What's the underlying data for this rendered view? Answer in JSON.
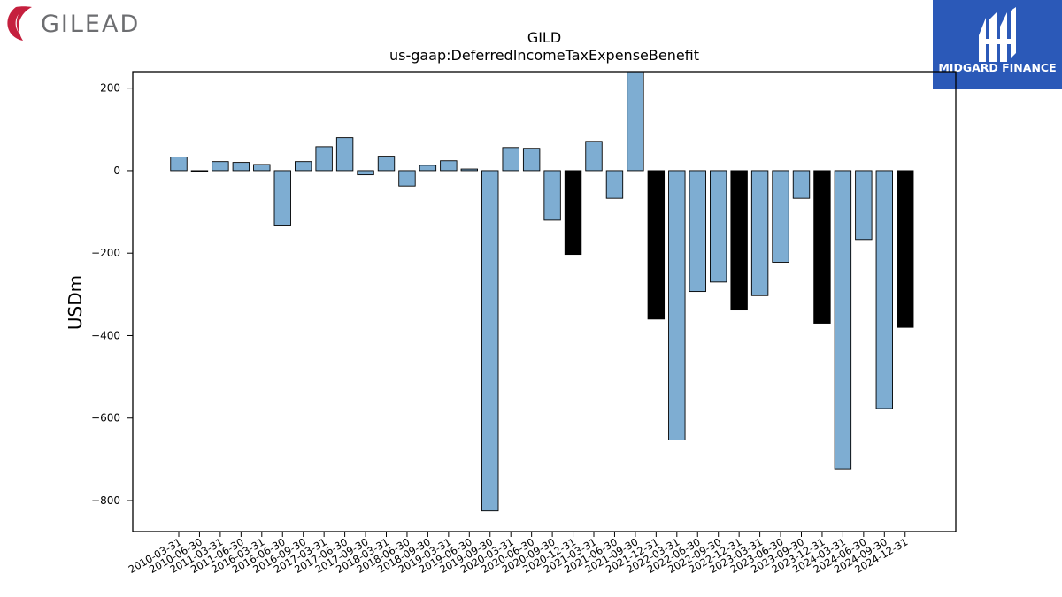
{
  "branding": {
    "company_logo_text": "GILEAD",
    "company_logo_color": "#6d6e71",
    "company_logo_mark_color": "#c5203e",
    "publisher_logo_text": "MIDGARD FINANCE",
    "publisher_bg_color": "#2b59b8"
  },
  "chart_data": {
    "type": "bar",
    "title": "GILD",
    "subtitle": "us-gaap:DeferredIncomeTaxExpenseBenefit",
    "xlabel": "",
    "ylabel": "USDm",
    "ylim": [
      -875,
      240
    ],
    "yticks": [
      200,
      0,
      -200,
      -400,
      -600,
      -800
    ],
    "ytick_labels": [
      "200",
      "0",
      "−200",
      "−400",
      "−600",
      "−800"
    ],
    "grid": false,
    "colors": {
      "quarterly": "#7eadd2",
      "year_end": "#000000",
      "edge": "#000000"
    },
    "categories": [
      "2010-03-31",
      "2010-06-30",
      "2011-03-31",
      "2011-06-30",
      "2016-03-31",
      "2016-06-30",
      "2016-09-30",
      "2017-03-31",
      "2017-06-30",
      "2017-09-30",
      "2018-03-31",
      "2018-06-30",
      "2018-09-30",
      "2019-03-31",
      "2019-06-30",
      "2019-09-30",
      "2020-03-31",
      "2020-06-30",
      "2020-09-30",
      "2020-12-31",
      "2021-03-31",
      "2021-06-30",
      "2021-09-30",
      "2021-12-31",
      "2022-03-31",
      "2022-06-30",
      "2022-09-30",
      "2022-12-31",
      "2023-03-31",
      "2023-06-30",
      "2023-09-30",
      "2023-12-31",
      "2024-03-31",
      "2024-06-30",
      "2024-09-30",
      "2024-12-31"
    ],
    "values": [
      33,
      -2,
      22,
      20,
      15,
      -132,
      22,
      58,
      80,
      -10,
      35,
      -37,
      13,
      24,
      4,
      -825,
      56,
      54,
      -120,
      -203,
      71,
      -67,
      245,
      -360,
      -653,
      -293,
      -270,
      -338,
      -303,
      -222,
      -67,
      -370,
      -723,
      -167,
      -577,
      -380
    ],
    "highlight": [
      false,
      false,
      false,
      false,
      false,
      false,
      false,
      false,
      false,
      false,
      false,
      false,
      false,
      false,
      false,
      false,
      false,
      false,
      false,
      true,
      false,
      false,
      false,
      true,
      false,
      false,
      false,
      true,
      false,
      false,
      false,
      true,
      false,
      false,
      false,
      true
    ]
  }
}
